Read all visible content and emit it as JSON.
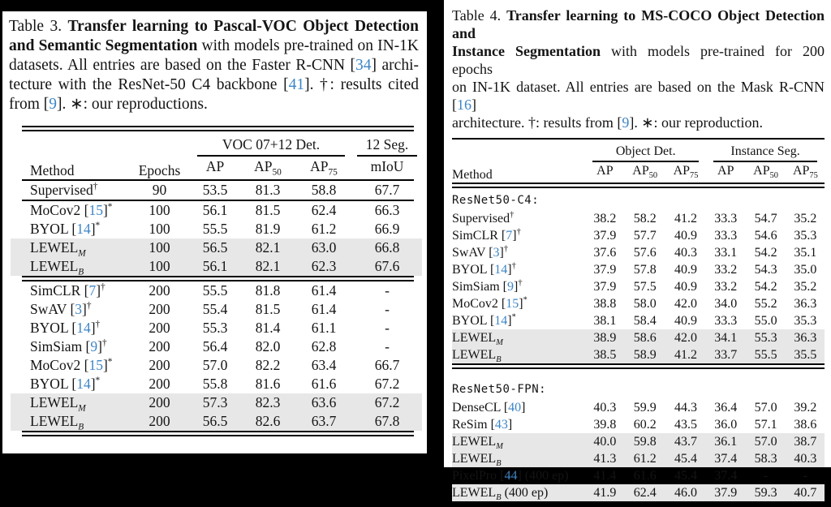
{
  "page": {
    "background": "#000000",
    "panel_background": "#ffffff"
  },
  "colors": {
    "cite_blue": "#3d85c6",
    "highlight_gray": "#e7e7e7",
    "rule_black": "#000000"
  },
  "table3": {
    "caption_lines": [
      [
        {
          "t": "Table 3.  "
        },
        {
          "t": "Transfer learning to Pascal-VOC Object Detection",
          "b": true
        }
      ],
      [
        {
          "t": "and Semantic Segmentation",
          "b": true
        },
        {
          "t": " with models pre-trained on IN-1K"
        }
      ],
      [
        {
          "t": "datasets.  All entries are based on the Faster R-CNN ["
        },
        {
          "t": "34",
          "c": true
        },
        {
          "t": "] archi-"
        }
      ],
      [
        {
          "t": "tecture with the ResNet-50 C4 backbone ["
        },
        {
          "t": "41",
          "c": true
        },
        {
          "t": "].  †: results cited"
        }
      ],
      [
        {
          "t": "from ["
        },
        {
          "t": "9",
          "c": true
        },
        {
          "t": "]. ∗: our reproductions."
        }
      ]
    ],
    "top_rule": "double",
    "header_rule": "single",
    "header": {
      "method": "Method",
      "epochs": "Epochs",
      "group_det": "VOC 07+12 Det.",
      "group_seg": "12 Seg.",
      "subcols": [
        {
          "t": "AP"
        },
        {
          "t": "AP",
          "sub": "50"
        },
        {
          "t": "AP",
          "sub": "75"
        },
        {
          "t": "mIoU"
        }
      ]
    },
    "rows": [
      {
        "method": [
          {
            "t": "Supervised"
          },
          {
            "t": "†",
            "sup": true
          }
        ],
        "epochs": "90",
        "vals": [
          {
            "v": "53.5"
          },
          {
            "v": "81.3"
          },
          {
            "v": "58.8"
          },
          {
            "v": "67.7"
          }
        ],
        "rule_after": "single"
      },
      {
        "method": [
          {
            "t": "MoCov2 ["
          },
          {
            "t": "15",
            "c": true
          },
          {
            "t": "]"
          },
          {
            "t": "*",
            "sup": true
          }
        ],
        "epochs": "100",
        "vals": [
          {
            "v": "56.1"
          },
          {
            "v": "81.5"
          },
          {
            "v": "62.4"
          },
          {
            "v": "66.3"
          }
        ]
      },
      {
        "method": [
          {
            "t": "BYOL ["
          },
          {
            "t": "14",
            "c": true
          },
          {
            "t": "]"
          },
          {
            "t": "*",
            "sup": true
          }
        ],
        "epochs": "100",
        "vals": [
          {
            "v": "55.5"
          },
          {
            "v": "81.9"
          },
          {
            "v": "61.2"
          },
          {
            "v": "66.9"
          }
        ]
      },
      {
        "method": [
          {
            "t": "LEWEL"
          },
          {
            "t": "M",
            "sub": true
          }
        ],
        "epochs": "100",
        "hl": true,
        "vals": [
          {
            "v": "56.5",
            "b": true
          },
          {
            "v": "82.1",
            "b": true
          },
          {
            "v": "63.0",
            "b": true
          },
          {
            "v": "66.8"
          }
        ]
      },
      {
        "method": [
          {
            "t": "LEWEL"
          },
          {
            "t": "B",
            "sub": true
          }
        ],
        "epochs": "100",
        "hl": true,
        "vals": [
          {
            "v": "56.1"
          },
          {
            "v": "82.1",
            "b": true
          },
          {
            "v": "62.3"
          },
          {
            "v": "67.6",
            "b": true
          }
        ],
        "rule_after": "double"
      },
      {
        "method": [
          {
            "t": "SimCLR ["
          },
          {
            "t": "7",
            "c": true
          },
          {
            "t": "]"
          },
          {
            "t": "†",
            "sup": true
          }
        ],
        "epochs": "200",
        "vals": [
          {
            "v": "55.5"
          },
          {
            "v": "81.8"
          },
          {
            "v": "61.4"
          },
          {
            "v": "-"
          }
        ]
      },
      {
        "method": [
          {
            "t": "SwAV ["
          },
          {
            "t": "3",
            "c": true
          },
          {
            "t": "]"
          },
          {
            "t": "†",
            "sup": true
          }
        ],
        "epochs": "200",
        "vals": [
          {
            "v": "55.4"
          },
          {
            "v": "81.5"
          },
          {
            "v": "61.4"
          },
          {
            "v": "-"
          }
        ]
      },
      {
        "method": [
          {
            "t": "BYOL ["
          },
          {
            "t": "14",
            "c": true
          },
          {
            "t": "]"
          },
          {
            "t": "†",
            "sup": true
          }
        ],
        "epochs": "200",
        "vals": [
          {
            "v": "55.3"
          },
          {
            "v": "81.4"
          },
          {
            "v": "61.1"
          },
          {
            "v": "-"
          }
        ]
      },
      {
        "method": [
          {
            "t": "SimSiam ["
          },
          {
            "t": "9",
            "c": true
          },
          {
            "t": "]"
          },
          {
            "t": "†",
            "sup": true
          }
        ],
        "epochs": "200",
        "vals": [
          {
            "v": "56.4"
          },
          {
            "v": "82.0"
          },
          {
            "v": "62.8"
          },
          {
            "v": "-"
          }
        ]
      },
      {
        "method": [
          {
            "t": "MoCov2 ["
          },
          {
            "t": "15",
            "c": true
          },
          {
            "t": "]"
          },
          {
            "t": "*",
            "sup": true
          }
        ],
        "epochs": "200",
        "vals": [
          {
            "v": "57.0"
          },
          {
            "v": "82.2"
          },
          {
            "v": "63.4"
          },
          {
            "v": "66.7"
          }
        ]
      },
      {
        "method": [
          {
            "t": "BYOL ["
          },
          {
            "t": "14",
            "c": true
          },
          {
            "t": "]"
          },
          {
            "t": "*",
            "sup": true
          }
        ],
        "epochs": "200",
        "vals": [
          {
            "v": "55.8"
          },
          {
            "v": "81.6"
          },
          {
            "v": "61.6"
          },
          {
            "v": "67.2"
          }
        ]
      },
      {
        "method": [
          {
            "t": "LEWEL"
          },
          {
            "t": "M",
            "sub": true
          }
        ],
        "epochs": "200",
        "hl": true,
        "vals": [
          {
            "v": "57.3",
            "b": true
          },
          {
            "v": "82.3"
          },
          {
            "v": "63.6"
          },
          {
            "v": "67.2"
          }
        ]
      },
      {
        "method": [
          {
            "t": "LEWEL"
          },
          {
            "t": "B",
            "sub": true
          }
        ],
        "epochs": "200",
        "hl": true,
        "vals": [
          {
            "v": "56.5"
          },
          {
            "v": "82.6",
            "b": true
          },
          {
            "v": "63.7",
            "b": true
          },
          {
            "v": "67.8",
            "b": true
          }
        ],
        "rule_after": "double"
      }
    ]
  },
  "table4": {
    "caption_lines": [
      [
        {
          "t": "Table 4. "
        },
        {
          "t": "Transfer learning to MS-COCO Object Detection and",
          "b": true
        }
      ],
      [
        {
          "t": "Instance Segmentation",
          "b": true
        },
        {
          "t": " with models pre-trained for 200 epochs"
        }
      ],
      [
        {
          "t": "on IN-1K dataset. All entries are based on the Mask R-CNN ["
        },
        {
          "t": "16",
          "c": true
        },
        {
          "t": "]"
        }
      ],
      [
        {
          "t": "architecture. †: results from ["
        },
        {
          "t": "9",
          "c": true
        },
        {
          "t": "]. ∗: our reproduction."
        }
      ]
    ],
    "top_rule": "single",
    "header_rule": "double",
    "header": {
      "method": "Method",
      "group_det": "Object Det.",
      "group_seg": "Instance Seg.",
      "subcols": [
        {
          "t": "AP"
        },
        {
          "t": "AP",
          "sub": "50"
        },
        {
          "t": "AP",
          "sub": "75"
        },
        {
          "t": "AP"
        },
        {
          "t": "AP",
          "sub": "50"
        },
        {
          "t": "AP",
          "sub": "75"
        }
      ]
    },
    "rows": [
      {
        "section": "ResNet50-C4:"
      },
      {
        "method": [
          {
            "t": "Supervised"
          },
          {
            "t": "†",
            "sup": true
          }
        ],
        "vals": [
          {
            "v": "38.2"
          },
          {
            "v": "58.2"
          },
          {
            "v": "41.2"
          },
          {
            "v": "33.3"
          },
          {
            "v": "54.7"
          },
          {
            "v": "35.2"
          }
        ]
      },
      {
        "method": [
          {
            "t": "SimCLR ["
          },
          {
            "t": "7",
            "c": true
          },
          {
            "t": "]"
          },
          {
            "t": "†",
            "sup": true
          }
        ],
        "vals": [
          {
            "v": "37.9"
          },
          {
            "v": "57.7"
          },
          {
            "v": "40.9"
          },
          {
            "v": "33.3"
          },
          {
            "v": "54.6"
          },
          {
            "v": "35.3"
          }
        ]
      },
      {
        "method": [
          {
            "t": "SwAV ["
          },
          {
            "t": "3",
            "c": true
          },
          {
            "t": "]"
          },
          {
            "t": "†",
            "sup": true
          }
        ],
        "vals": [
          {
            "v": "37.6"
          },
          {
            "v": "57.6"
          },
          {
            "v": "40.3"
          },
          {
            "v": "33.1"
          },
          {
            "v": "54.2"
          },
          {
            "v": "35.1"
          }
        ]
      },
      {
        "method": [
          {
            "t": "BYOL ["
          },
          {
            "t": "14",
            "c": true
          },
          {
            "t": "]"
          },
          {
            "t": "†",
            "sup": true
          }
        ],
        "vals": [
          {
            "v": "37.9"
          },
          {
            "v": "57.8"
          },
          {
            "v": "40.9"
          },
          {
            "v": "33.2"
          },
          {
            "v": "54.3"
          },
          {
            "v": "35.0"
          }
        ]
      },
      {
        "method": [
          {
            "t": "SimSiam ["
          },
          {
            "t": "9",
            "c": true
          },
          {
            "t": "]"
          },
          {
            "t": "†",
            "sup": true
          }
        ],
        "vals": [
          {
            "v": "37.9"
          },
          {
            "v": "57.5"
          },
          {
            "v": "40.9"
          },
          {
            "v": "33.2"
          },
          {
            "v": "54.2"
          },
          {
            "v": "35.2"
          }
        ]
      },
      {
        "method": [
          {
            "t": "MoCov2 ["
          },
          {
            "t": "15",
            "c": true
          },
          {
            "t": "]"
          },
          {
            "t": "*",
            "sup": true
          }
        ],
        "vals": [
          {
            "v": "38.8"
          },
          {
            "v": "58.0"
          },
          {
            "v": "42.0",
            "b": true
          },
          {
            "v": "34.0"
          },
          {
            "v": "55.2"
          },
          {
            "v": "36.3",
            "b": true
          }
        ]
      },
      {
        "method": [
          {
            "t": "BYOL ["
          },
          {
            "t": "14",
            "c": true
          },
          {
            "t": "]"
          },
          {
            "t": "*",
            "sup": true
          }
        ],
        "vals": [
          {
            "v": "38.1"
          },
          {
            "v": "58.4"
          },
          {
            "v": "40.9"
          },
          {
            "v": "33.3"
          },
          {
            "v": "55.0"
          },
          {
            "v": "35.3"
          }
        ]
      },
      {
        "method": [
          {
            "t": "LEWEL"
          },
          {
            "t": "M",
            "sub": true
          }
        ],
        "hl": true,
        "vals": [
          {
            "v": "38.9",
            "b": true
          },
          {
            "v": "58.6"
          },
          {
            "v": "42.0",
            "b": true
          },
          {
            "v": "34.1",
            "b": true
          },
          {
            "v": "55.3"
          },
          {
            "v": "36.3",
            "b": true
          }
        ]
      },
      {
        "method": [
          {
            "t": "LEWEL"
          },
          {
            "t": "B",
            "sub": true
          }
        ],
        "hl": true,
        "vals": [
          {
            "v": "38.5"
          },
          {
            "v": "58.9",
            "b": true
          },
          {
            "v": "41.2"
          },
          {
            "v": "33.7"
          },
          {
            "v": "55.5",
            "b": true
          },
          {
            "v": "35.5"
          }
        ],
        "rule_after": "double"
      },
      {
        "section": "ResNet50-FPN:",
        "gap": true
      },
      {
        "method": [
          {
            "t": "DenseCL ["
          },
          {
            "t": "40",
            "c": true
          },
          {
            "t": "]"
          }
        ],
        "vals": [
          {
            "v": "40.3"
          },
          {
            "v": "59.9"
          },
          {
            "v": "44.3"
          },
          {
            "v": "36.4"
          },
          {
            "v": "57.0"
          },
          {
            "v": "39.2"
          }
        ]
      },
      {
        "method": [
          {
            "t": "ReSim ["
          },
          {
            "t": "43",
            "c": true
          },
          {
            "t": "]"
          }
        ],
        "vals": [
          {
            "v": "39.8"
          },
          {
            "v": "60.2"
          },
          {
            "v": "43.5"
          },
          {
            "v": "36.0"
          },
          {
            "v": "57.1"
          },
          {
            "v": "38.6"
          }
        ]
      },
      {
        "method": [
          {
            "t": "LEWEL"
          },
          {
            "t": "M",
            "sub": true
          }
        ],
        "hl": true,
        "vals": [
          {
            "v": "40.0"
          },
          {
            "v": "59.8"
          },
          {
            "v": "43.7"
          },
          {
            "v": "36.1"
          },
          {
            "v": "57.0"
          },
          {
            "v": "38.7"
          }
        ]
      },
      {
        "method": [
          {
            "t": "LEWEL"
          },
          {
            "t": "B",
            "sub": true
          }
        ],
        "hl": true,
        "vals": [
          {
            "v": "41.3",
            "b": true
          },
          {
            "v": "61.2",
            "b": true
          },
          {
            "v": "45.4",
            "b": true
          },
          {
            "v": "37.4",
            "b": true
          },
          {
            "v": "58.3",
            "b": true
          },
          {
            "v": "40.3",
            "b": true
          }
        ]
      },
      {
        "method": [
          {
            "t": "PixelPro ["
          },
          {
            "t": "44",
            "c": true
          },
          {
            "t": "] (400 ep)"
          }
        ],
        "vals": [
          {
            "v": "41.4"
          },
          {
            "v": "61.6"
          },
          {
            "v": "45.4"
          },
          {
            "v": "37.4"
          },
          {
            "v": "-"
          },
          {
            "v": "-"
          }
        ]
      },
      {
        "method": [
          {
            "t": "LEWEL"
          },
          {
            "t": "B",
            "sub": true
          },
          {
            "t": " (400 ep)"
          }
        ],
        "hl": true,
        "vals": [
          {
            "v": "41.9",
            "b": true
          },
          {
            "v": "62.4",
            "b": true
          },
          {
            "v": "46.0",
            "b": true
          },
          {
            "v": "37.9",
            "b": true
          },
          {
            "v": "59.3",
            "b": true
          },
          {
            "v": "40.7",
            "b": true
          }
        ],
        "rule_after": "double"
      }
    ]
  }
}
